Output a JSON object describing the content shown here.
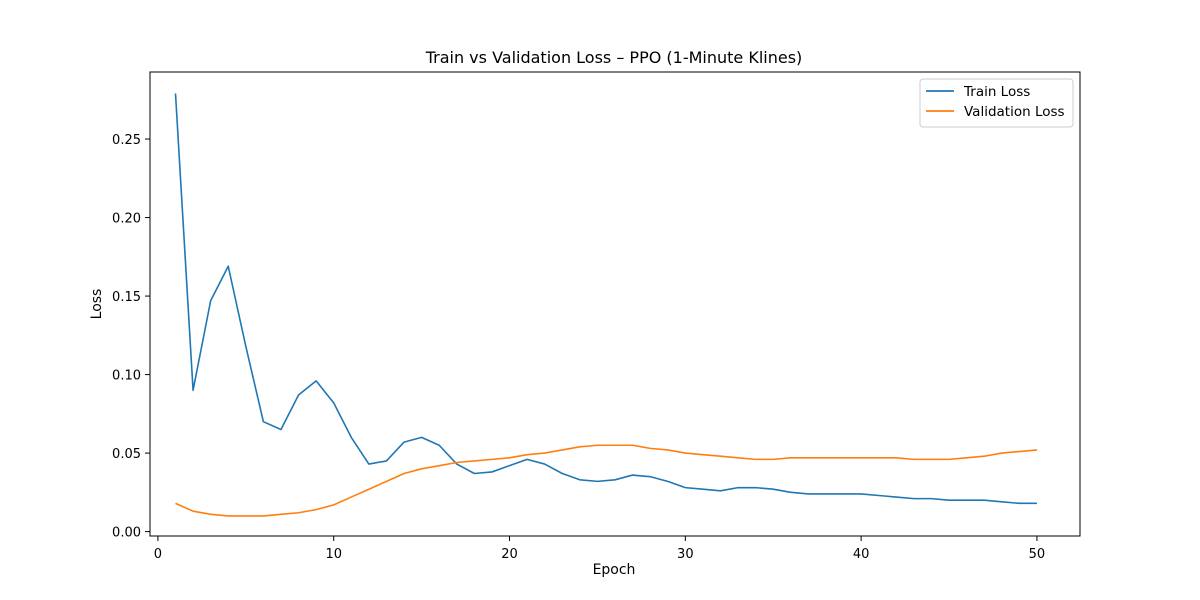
{
  "chart_data": {
    "type": "line",
    "title": "Train vs Validation Loss – PPO (1-Minute Klines)",
    "xlabel": "Epoch",
    "ylabel": "Loss",
    "xlim": [
      -0.45,
      52.45
    ],
    "ylim": [
      -0.0028,
      0.2927
    ],
    "xticks": [
      0,
      10,
      20,
      30,
      40,
      50
    ],
    "xtick_labels": [
      "0",
      "10",
      "20",
      "30",
      "40",
      "50"
    ],
    "yticks": [
      0.0,
      0.05,
      0.1,
      0.15,
      0.2,
      0.25
    ],
    "ytick_labels": [
      "0.00",
      "0.05",
      "0.10",
      "0.15",
      "0.20",
      "0.25"
    ],
    "grid": false,
    "legend_position": "upper right",
    "x": [
      1,
      2,
      3,
      4,
      5,
      6,
      7,
      8,
      9,
      10,
      11,
      12,
      13,
      14,
      15,
      16,
      17,
      18,
      19,
      20,
      21,
      22,
      23,
      24,
      25,
      26,
      27,
      28,
      29,
      30,
      31,
      32,
      33,
      34,
      35,
      36,
      37,
      38,
      39,
      40,
      41,
      42,
      43,
      44,
      45,
      46,
      47,
      48,
      49,
      50
    ],
    "series": [
      {
        "name": "Train Loss",
        "color": "#1f77b4",
        "values": [
          0.279,
          0.09,
          0.147,
          0.169,
          0.118,
          0.07,
          0.065,
          0.087,
          0.096,
          0.082,
          0.06,
          0.043,
          0.045,
          0.057,
          0.06,
          0.055,
          0.043,
          0.037,
          0.038,
          0.042,
          0.046,
          0.043,
          0.037,
          0.033,
          0.032,
          0.033,
          0.036,
          0.035,
          0.032,
          0.028,
          0.027,
          0.026,
          0.028,
          0.028,
          0.027,
          0.025,
          0.024,
          0.024,
          0.024,
          0.024,
          0.023,
          0.022,
          0.021,
          0.021,
          0.02,
          0.02,
          0.02,
          0.019,
          0.018,
          0.018
        ]
      },
      {
        "name": "Validation Loss",
        "color": "#ff7f0e",
        "values": [
          0.018,
          0.013,
          0.011,
          0.01,
          0.01,
          0.01,
          0.011,
          0.012,
          0.014,
          0.017,
          0.022,
          0.027,
          0.032,
          0.037,
          0.04,
          0.042,
          0.044,
          0.045,
          0.046,
          0.047,
          0.049,
          0.05,
          0.052,
          0.054,
          0.055,
          0.055,
          0.055,
          0.053,
          0.052,
          0.05,
          0.049,
          0.048,
          0.047,
          0.046,
          0.046,
          0.047,
          0.047,
          0.047,
          0.047,
          0.047,
          0.047,
          0.047,
          0.046,
          0.046,
          0.046,
          0.047,
          0.048,
          0.05,
          0.051,
          0.052
        ]
      }
    ]
  }
}
